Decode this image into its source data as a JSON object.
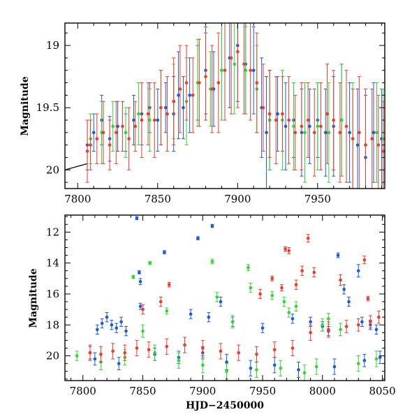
{
  "colors": {
    "blue": "#1a5adf",
    "green": "#2fd82f",
    "red": "#f03a2a",
    "black": "#000000"
  },
  "chart_data": [
    {
      "type": "scatter",
      "panel": "top",
      "xlabel": "",
      "ylabel": "Magnitude",
      "xlim": [
        7792,
        7992
      ],
      "ylim": [
        20.15,
        18.82
      ],
      "y_inverted": true,
      "xticks": [
        7800,
        7850,
        7900,
        7950
      ],
      "yticks": [
        19,
        19.5,
        20
      ],
      "ytick_labels": [
        "19",
        "19.5",
        "20"
      ],
      "grid": false,
      "error_bars": true,
      "model_curve": {
        "color": "black",
        "x": [
          7792,
          7806
        ],
        "y": [
          20.0,
          19.95
        ]
      },
      "series": [
        {
          "color": "blue",
          "x": [
            7806,
            7810,
            7815,
            7820,
            7825,
            7830,
            7835,
            7840,
            7845,
            7850,
            7855,
            7860,
            7863,
            7866,
            7870,
            7875,
            7880,
            7885,
            7890,
            7895,
            7900,
            7905,
            7910,
            7915,
            7918,
            7920,
            7925,
            7930,
            7935,
            7940,
            7945,
            7950,
            7955,
            7960,
            7965,
            7970,
            7975,
            7980,
            7985,
            7990
          ],
          "y": [
            19.8,
            19.7,
            19.6,
            19.75,
            19.65,
            19.7,
            19.6,
            19.55,
            19.5,
            19.6,
            19.5,
            19.55,
            19.4,
            19.5,
            19.4,
            19.3,
            19.2,
            19.35,
            19.2,
            19.1,
            19.0,
            19.15,
            19.2,
            19.5,
            19.7,
            19.6,
            19.55,
            19.65,
            19.6,
            19.7,
            19.65,
            19.6,
            19.7,
            19.65,
            19.6,
            19.7,
            19.8,
            19.9,
            19.7,
            19.75
          ],
          "err": [
            0.2,
            0.15,
            0.2,
            0.18,
            0.2,
            0.15,
            0.2,
            0.25,
            0.2,
            0.25,
            0.2,
            0.3,
            0.35,
            0.25,
            0.3,
            0.3,
            0.35,
            0.3,
            0.4,
            0.4,
            0.45,
            0.4,
            0.35,
            0.4,
            0.45,
            0.4,
            0.3,
            0.35,
            0.3,
            0.35,
            0.3,
            0.3,
            0.35,
            0.4,
            0.45,
            0.4,
            0.45,
            0.5,
            0.4,
            0.4
          ]
        },
        {
          "color": "green",
          "x": [
            7808,
            7815,
            7822,
            7830,
            7838,
            7845,
            7852,
            7860,
            7868,
            7875,
            7883,
            7890,
            7898,
            7905,
            7912,
            7920,
            7928,
            7935,
            7942,
            7950,
            7957,
            7965,
            7972,
            7980,
            7987,
            7991
          ],
          "y": [
            19.75,
            19.7,
            19.65,
            19.7,
            19.55,
            19.6,
            19.5,
            19.45,
            19.45,
            19.3,
            19.35,
            19.2,
            19.15,
            19.2,
            19.35,
            19.6,
            19.6,
            19.65,
            19.7,
            19.65,
            19.7,
            19.6,
            19.75,
            19.8,
            19.7,
            19.75
          ],
          "err": [
            0.2,
            0.25,
            0.2,
            0.2,
            0.25,
            0.25,
            0.3,
            0.3,
            0.35,
            0.35,
            0.3,
            0.4,
            0.4,
            0.35,
            0.35,
            0.4,
            0.4,
            0.35,
            0.4,
            0.35,
            0.4,
            0.45,
            0.45,
            0.45,
            0.4,
            0.4
          ]
        },
        {
          "color": "red",
          "x": [
            7806,
            7808,
            7812,
            7816,
            7820,
            7824,
            7828,
            7832,
            7836,
            7840,
            7844,
            7848,
            7852,
            7856,
            7860,
            7864,
            7868,
            7872,
            7876,
            7880,
            7884,
            7888,
            7892,
            7896,
            7900,
            7904,
            7908,
            7912,
            7916,
            7920,
            7924,
            7928,
            7932,
            7936,
            7940,
            7944,
            7948,
            7952,
            7956,
            7960,
            7964,
            7968,
            7972,
            7976,
            7980,
            7984,
            7988,
            7991
          ],
          "y": [
            19.85,
            19.8,
            19.75,
            19.7,
            19.8,
            19.7,
            19.65,
            19.75,
            19.65,
            19.6,
            19.55,
            19.6,
            19.5,
            19.55,
            19.45,
            19.35,
            19.3,
            19.4,
            19.3,
            19.25,
            19.35,
            19.3,
            19.2,
            19.1,
            19.05,
            19.15,
            19.2,
            19.3,
            19.5,
            19.55,
            19.6,
            19.55,
            19.6,
            19.7,
            19.65,
            19.6,
            19.7,
            19.65,
            19.55,
            19.6,
            19.7,
            19.65,
            19.75,
            19.7,
            19.8,
            19.75,
            19.8,
            19.85
          ],
          "err": [
            0.25,
            0.2,
            0.2,
            0.25,
            0.2,
            0.25,
            0.2,
            0.25,
            0.2,
            0.3,
            0.25,
            0.3,
            0.3,
            0.3,
            0.35,
            0.35,
            0.3,
            0.3,
            0.35,
            0.35,
            0.35,
            0.4,
            0.4,
            0.45,
            0.45,
            0.4,
            0.4,
            0.4,
            0.35,
            0.35,
            0.35,
            0.3,
            0.35,
            0.3,
            0.35,
            0.3,
            0.35,
            0.35,
            0.4,
            0.4,
            0.4,
            0.45,
            0.4,
            0.45,
            0.45,
            0.4,
            0.4,
            0.4
          ]
        }
      ]
    },
    {
      "type": "scatter",
      "panel": "bottom",
      "xlabel": "HJD−2450000",
      "ylabel": "Magnitude",
      "xlim": [
        7785,
        8052
      ],
      "ylim": [
        21.6,
        10.9
      ],
      "y_inverted": true,
      "xticks": [
        7800,
        7850,
        7900,
        7950,
        8000,
        8050
      ],
      "yticks": [
        12,
        14,
        16,
        18,
        20
      ],
      "ytick_labels": [
        "12",
        "14",
        "16",
        "18",
        "20"
      ],
      "grid": false,
      "error_bars": true,
      "series": [
        {
          "color": "blue",
          "x": [
            7812,
            7816,
            7820,
            7824,
            7828,
            7832,
            7836,
            7845,
            7847,
            7848,
            7848,
            7868,
            7896,
            7908,
            7915,
            7905,
            7890,
            7925,
            7950,
            7975,
            7990,
            8000,
            8005,
            8013,
            8018,
            8022,
            8030,
            8033,
            8040,
            8045,
            7806,
            7810,
            7830,
            7860,
            7880,
            7900,
            7920,
            7940,
            7960,
            7980,
            8010,
            8035,
            8048
          ],
          "y": [
            18.3,
            17.9,
            17.5,
            18.0,
            18.2,
            17.8,
            18.4,
            11.1,
            14.6,
            15.2,
            16.8,
            13.3,
            12.4,
            11.6,
            16.5,
            17.5,
            17.3,
            17.8,
            18.2,
            17.6,
            17.8,
            18.1,
            18.4,
            13.5,
            15.7,
            16.5,
            14.5,
            17.8,
            18.0,
            18.3,
            19.8,
            20.2,
            20.5,
            19.9,
            20.1,
            19.8,
            20.4,
            20.8,
            20.6,
            20.9,
            20.7,
            20.3,
            20.1
          ],
          "err": [
            0.3,
            0.3,
            0.3,
            0.3,
            0.3,
            0.3,
            0.3,
            0.1,
            0.1,
            0.2,
            0.2,
            0.1,
            0.1,
            0.1,
            0.3,
            0.3,
            0.3,
            0.3,
            0.3,
            0.3,
            0.3,
            0.3,
            0.3,
            0.15,
            0.3,
            0.3,
            0.4,
            0.3,
            0.3,
            0.3,
            0.4,
            0.4,
            0.4,
            0.4,
            0.4,
            0.4,
            0.5,
            0.5,
            0.5,
            0.5,
            0.5,
            0.4,
            0.4
          ]
        },
        {
          "color": "green",
          "x": [
            7795,
            7842,
            7856,
            7870,
            7908,
            7912,
            7938,
            7940,
            7958,
            7968,
            7972,
            7978,
            8000,
            8005,
            8015,
            7815,
            7835,
            7860,
            7880,
            7900,
            7920,
            7945,
            7965,
            7985,
            7995,
            8030,
            8045,
            7850,
            7925
          ],
          "y": [
            20.0,
            14.9,
            14.0,
            17.1,
            13.9,
            16.2,
            14.3,
            15.6,
            16.1,
            16.5,
            17.2,
            16.8,
            18.0,
            17.6,
            18.3,
            20.4,
            20.1,
            19.8,
            20.3,
            20.6,
            21.0,
            20.9,
            20.8,
            21.1,
            20.7,
            20.5,
            20.2,
            18.4,
            17.8
          ],
          "err": [
            0.3,
            0.1,
            0.1,
            0.2,
            0.15,
            0.3,
            0.2,
            0.3,
            0.25,
            0.3,
            0.3,
            0.3,
            0.4,
            0.35,
            0.4,
            0.5,
            0.5,
            0.5,
            0.5,
            0.5,
            0.5,
            0.5,
            0.5,
            0.5,
            0.5,
            0.5,
            0.5,
            0.4,
            0.4
          ]
        },
        {
          "color": "red",
          "x": [
            7850,
            7865,
            7872,
            7948,
            7958,
            7966,
            7969,
            7972,
            7978,
            7983,
            7988,
            7993,
            8015,
            8035,
            8038,
            7806,
            7815,
            7825,
            7835,
            7845,
            7855,
            7870,
            7885,
            7900,
            7915,
            7930,
            7945,
            7960,
            7975,
            7990,
            8005,
            8020,
            8030,
            8040,
            8047
          ],
          "y": [
            17.0,
            16.5,
            15.4,
            16.0,
            15.0,
            15.6,
            13.1,
            13.2,
            15.4,
            14.5,
            12.4,
            14.6,
            15.1,
            13.8,
            16.3,
            19.8,
            19.9,
            19.7,
            19.8,
            19.5,
            19.6,
            19.4,
            19.3,
            19.5,
            19.7,
            19.8,
            19.9,
            19.6,
            19.5,
            18.5,
            18.3,
            18.1,
            18.0,
            17.8,
            17.5
          ],
          "err": [
            0.3,
            0.3,
            0.15,
            0.3,
            0.15,
            0.2,
            0.15,
            0.2,
            0.3,
            0.3,
            0.25,
            0.3,
            0.35,
            0.25,
            0.15,
            0.5,
            0.5,
            0.5,
            0.5,
            0.5,
            0.5,
            0.5,
            0.5,
            0.5,
            0.5,
            0.5,
            0.5,
            0.5,
            0.5,
            0.5,
            0.5,
            0.4,
            0.4,
            0.4,
            0.4
          ]
        }
      ]
    }
  ]
}
